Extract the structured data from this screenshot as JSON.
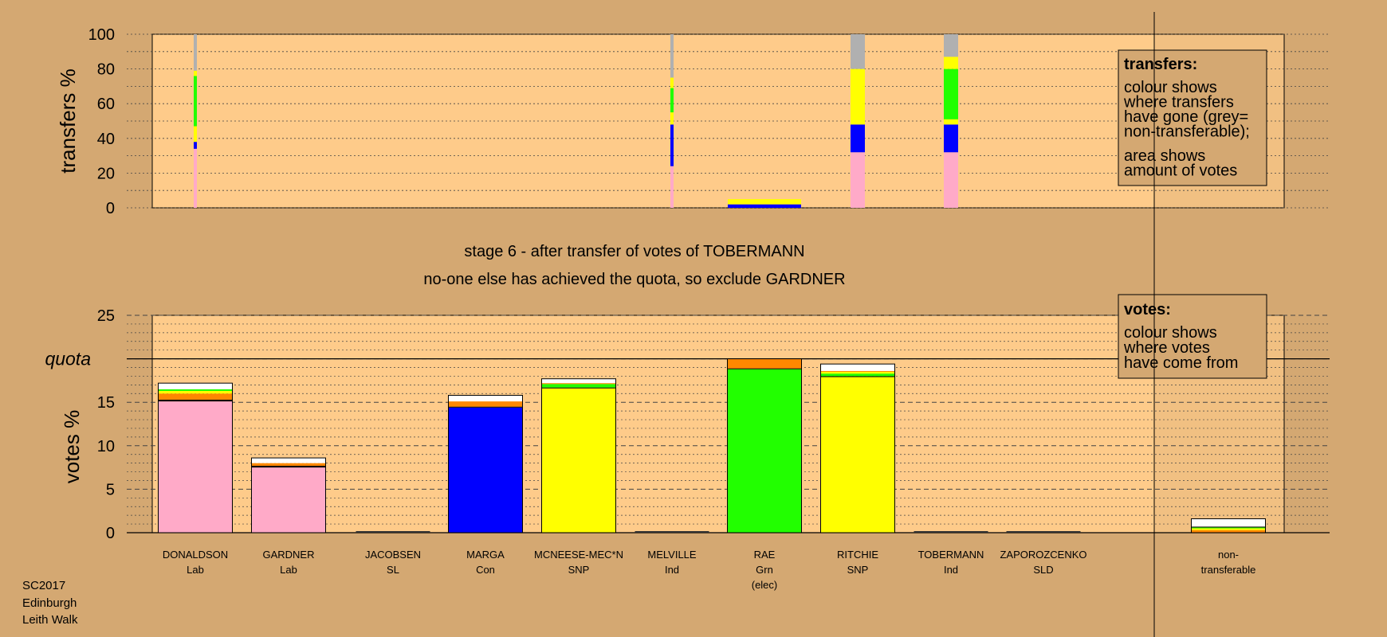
{
  "page": {
    "stage_title": "stage 6 - after transfer of votes of TOBERMANN",
    "stage_subtitle": "no-one else has achieved the quota, so exclude GARDNER",
    "footer": {
      "election": "SC2017",
      "council": "Edinburgh",
      "ward": "Leith Walk"
    }
  },
  "colors": {
    "background": "#d4a872",
    "panel": "#fecb8a",
    "pink": "#ffaac8",
    "blue": "#0000ff",
    "yellow": "#ffff00",
    "green": "#22ff00",
    "orange": "#ff8800",
    "white": "#ffffff",
    "grey": "#b0b0b0",
    "black": "#000000"
  },
  "chart_data": [
    {
      "type": "bar",
      "variant": "stacked transfer strips",
      "ylabel": "transfers %",
      "ylim": [
        0,
        100
      ],
      "yticks": [
        0,
        20,
        40,
        60,
        80,
        100
      ],
      "legend": {
        "title": "transfers:",
        "lines_a": [
          "colour shows",
          "where transfers",
          "have gone (grey=",
          "non-transferable);"
        ],
        "lines_b": [
          "area shows",
          "amount of votes"
        ]
      },
      "columns": [
        {
          "candidate": "DONALDSON",
          "width": "thin",
          "segments": [
            {
              "color": "pink",
              "from": 0,
              "to": 34
            },
            {
              "color": "blue",
              "from": 34,
              "to": 38
            },
            {
              "color": "yellow",
              "from": 38,
              "to": 47
            },
            {
              "color": "green",
              "from": 47,
              "to": 76
            },
            {
              "color": "yellow",
              "from": 76,
              "to": 79
            },
            {
              "color": "grey",
              "from": 79,
              "to": 100
            }
          ]
        },
        {
          "candidate": "MELVILLE",
          "width": "thin",
          "segments": [
            {
              "color": "pink",
              "from": 0,
              "to": 24
            },
            {
              "color": "blue",
              "from": 24,
              "to": 48
            },
            {
              "color": "yellow",
              "from": 48,
              "to": 55
            },
            {
              "color": "green",
              "from": 55,
              "to": 69
            },
            {
              "color": "yellow",
              "from": 69,
              "to": 75
            },
            {
              "color": "grey",
              "from": 75,
              "to": 100
            }
          ]
        },
        {
          "candidate": "RAE",
          "width": "wide",
          "segments": [
            {
              "color": "blue",
              "from": 0,
              "to": 2
            },
            {
              "color": "yellow",
              "from": 2,
              "to": 5
            }
          ]
        },
        {
          "candidate": "RITCHIE",
          "width": "medium",
          "segments": [
            {
              "color": "pink",
              "from": 0,
              "to": 32
            },
            {
              "color": "blue",
              "from": 32,
              "to": 48
            },
            {
              "color": "yellow",
              "from": 48,
              "to": 80
            },
            {
              "color": "grey",
              "from": 80,
              "to": 100
            }
          ]
        },
        {
          "candidate": "TOBERMANN",
          "width": "medium",
          "segments": [
            {
              "color": "pink",
              "from": 0,
              "to": 32
            },
            {
              "color": "blue",
              "from": 32,
              "to": 48
            },
            {
              "color": "yellow",
              "from": 48,
              "to": 51
            },
            {
              "color": "green",
              "from": 51,
              "to": 80
            },
            {
              "color": "yellow",
              "from": 80,
              "to": 87
            },
            {
              "color": "grey",
              "from": 87,
              "to": 100
            }
          ]
        }
      ]
    },
    {
      "type": "bar",
      "variant": "stacked",
      "ylabel": "votes %",
      "ylim": [
        0,
        25
      ],
      "yticks": [
        0,
        5,
        10,
        15,
        20,
        25
      ],
      "quota": {
        "label": "quota",
        "value": 20
      },
      "legend": {
        "title": "votes:",
        "lines": [
          "colour shows",
          "where votes",
          "have come from"
        ]
      },
      "categories": [
        {
          "name": "DONALDSON",
          "party": "Lab",
          "note": ""
        },
        {
          "name": "GARDNER",
          "party": "Lab",
          "note": ""
        },
        {
          "name": "JACOBSEN",
          "party": "SL",
          "note": ""
        },
        {
          "name": "MARGA",
          "party": "Con",
          "note": ""
        },
        {
          "name": "MCNEESE-MEC*N",
          "party": "SNP",
          "note": ""
        },
        {
          "name": "MELVILLE",
          "party": "Ind",
          "note": ""
        },
        {
          "name": "RAE",
          "party": "Grn",
          "note": "(elec)"
        },
        {
          "name": "RITCHIE",
          "party": "SNP",
          "note": ""
        },
        {
          "name": "TOBERMANN",
          "party": "Ind",
          "note": ""
        },
        {
          "name": "ZAPOROZCENKO",
          "party": "SLD",
          "note": ""
        },
        {
          "name": "non-",
          "party": "transferable",
          "note": ""
        }
      ],
      "stacks": [
        [
          {
            "color": "pink",
            "value": 15.1
          },
          {
            "color": "black",
            "value": 0.2
          },
          {
            "color": "orange",
            "value": 0.7
          },
          {
            "color": "yellow",
            "value": 0.3
          },
          {
            "color": "green",
            "value": 0.2
          },
          {
            "color": "white",
            "value": 0.7
          }
        ],
        [
          {
            "color": "pink",
            "value": 7.5
          },
          {
            "color": "black",
            "value": 0.2
          },
          {
            "color": "orange",
            "value": 0.3
          },
          {
            "color": "white",
            "value": 0.6
          }
        ],
        [],
        [
          {
            "color": "blue",
            "value": 14.4
          },
          {
            "color": "black",
            "value": 0.1
          },
          {
            "color": "orange",
            "value": 0.6
          },
          {
            "color": "white",
            "value": 0.7
          }
        ],
        [
          {
            "color": "yellow",
            "value": 16.6
          },
          {
            "color": "black",
            "value": 0.1
          },
          {
            "color": "green",
            "value": 0.4
          },
          {
            "color": "orange",
            "value": 0.1
          },
          {
            "color": "white",
            "value": 0.5
          }
        ],
        [],
        [
          {
            "color": "green",
            "value": 18.8
          },
          {
            "color": "black",
            "value": 0.1
          },
          {
            "color": "orange",
            "value": 1.1
          }
        ],
        [
          {
            "color": "yellow",
            "value": 17.9
          },
          {
            "color": "black",
            "value": 0.1
          },
          {
            "color": "green",
            "value": 0.3
          },
          {
            "color": "yellow",
            "value": 0.2
          },
          {
            "color": "orange",
            "value": 0.1
          },
          {
            "color": "white",
            "value": 0.8
          }
        ],
        [],
        [],
        [
          {
            "color": "orange",
            "value": 0.3
          },
          {
            "color": "yellow",
            "value": 0.2
          },
          {
            "color": "green",
            "value": 0.1
          },
          {
            "color": "black",
            "value": 0.1
          },
          {
            "color": "white",
            "value": 0.9
          }
        ]
      ]
    }
  ]
}
